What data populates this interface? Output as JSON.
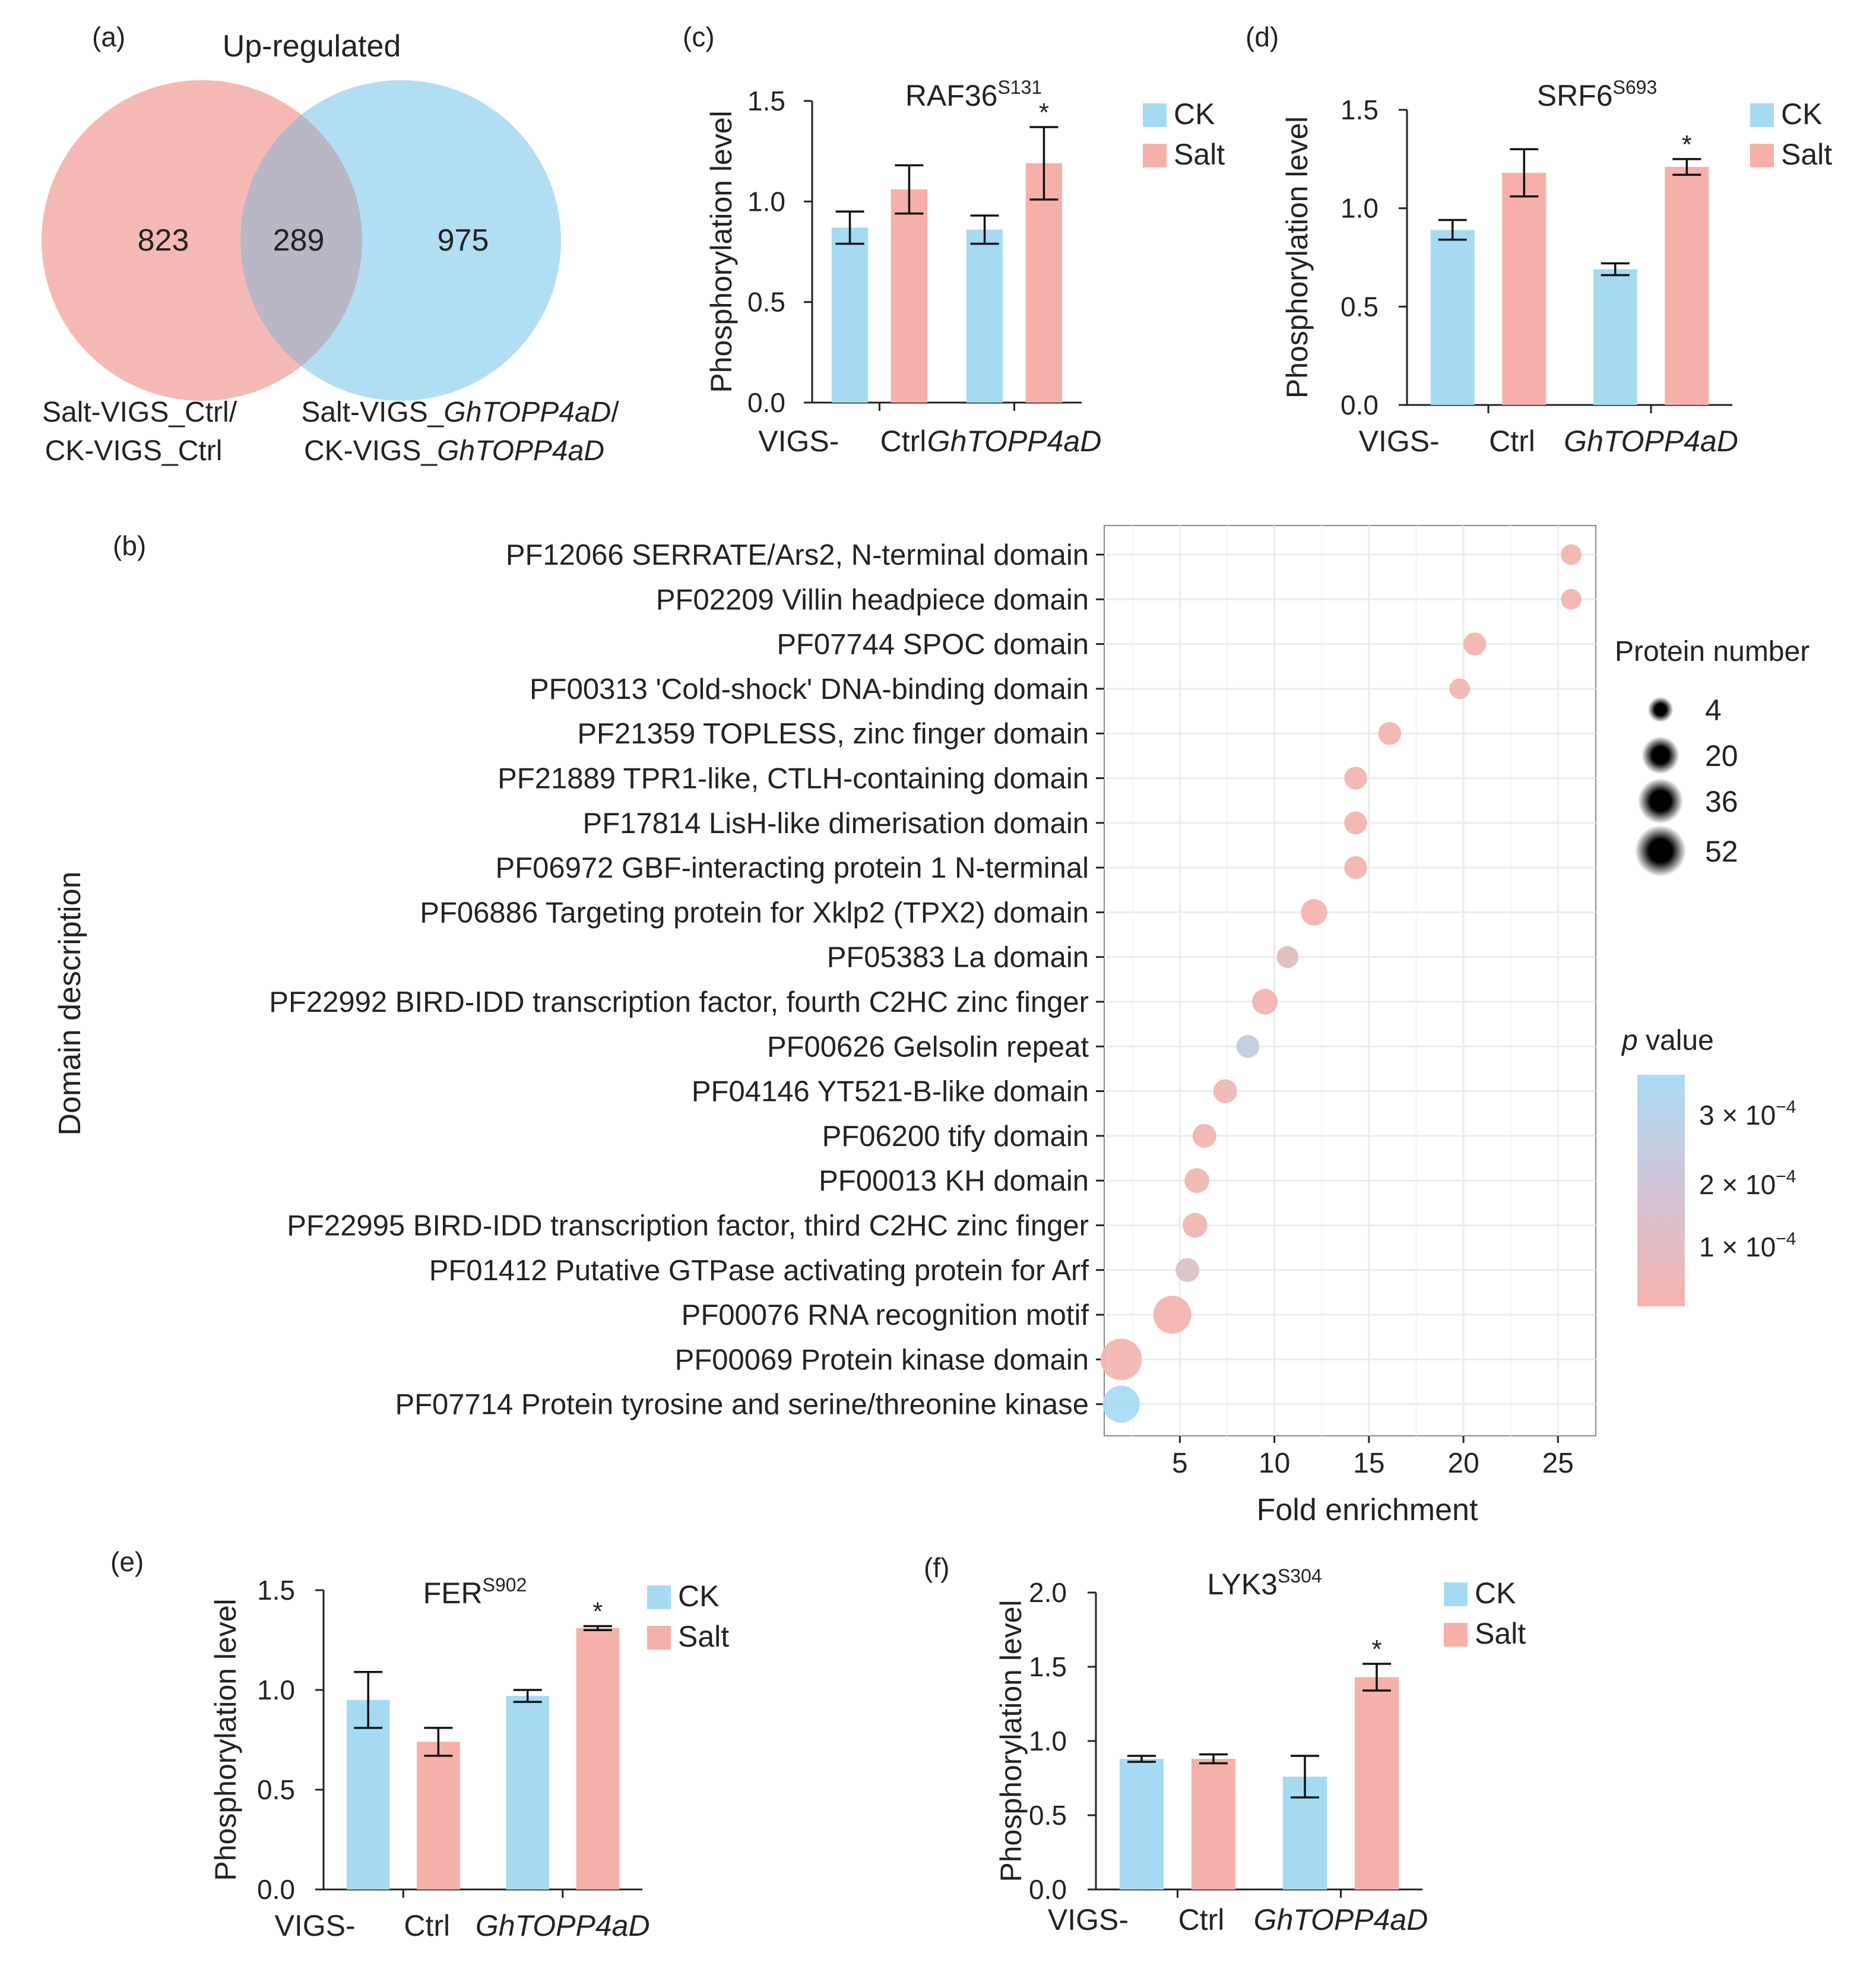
{
  "colors": {
    "ck": "#a6daf3",
    "salt": "#f5b0aa",
    "pink_circle": "#f4b9b4",
    "blue_circle": "#b2def4",
    "overlap": "#b9b6c5",
    "axis": "#222222"
  },
  "panel_labels": {
    "a": "(a)",
    "b": "(b)",
    "c": "(c)",
    "d": "(d)",
    "e": "(e)",
    "f": "(f)"
  },
  "venn": {
    "title": "Up-regulated",
    "left_only": "823",
    "overlap": "289",
    "right_only": "975",
    "left_label_1": "Salt-VIGS_Ctrl/",
    "left_label_2": "CK-VIGS_Ctrl",
    "right_label_1a": "Salt-VIGS_",
    "right_label_1b": "GhTOPP4aD",
    "right_label_1c": "/",
    "right_label_2a": "CK-VIGS_",
    "right_label_2b": "GhTOPP4aD"
  },
  "common": {
    "ylabel": "Phosphorylation level",
    "xprefix": "VIGS-",
    "group_ctrl": "Ctrl",
    "group_gene": "GhTOPP4aD",
    "legend_ck": "CK",
    "legend_salt": "Salt",
    "sig": "*"
  },
  "chart_data": [
    {
      "id": "c",
      "type": "bar",
      "title": "RAF36",
      "sup": "S131",
      "ylim": [
        0,
        1.5
      ],
      "ticks": [
        "0.0",
        "0.5",
        "1.0",
        "1.5"
      ],
      "categories": [
        "Ctrl",
        "GhTOPP4aD"
      ],
      "series": [
        {
          "name": "CK",
          "values": [
            0.87,
            0.86
          ],
          "err": [
            0.08,
            0.07
          ]
        },
        {
          "name": "Salt",
          "values": [
            1.06,
            1.19
          ],
          "err": [
            0.12,
            0.18
          ]
        }
      ],
      "significant": [
        false,
        true
      ]
    },
    {
      "id": "d",
      "type": "bar",
      "title": "SRF6",
      "sup": "S693",
      "ylim": [
        0,
        1.5
      ],
      "ticks": [
        "0.0",
        "0.5",
        "1.0",
        "1.5"
      ],
      "categories": [
        "Ctrl",
        "GhTOPP4aD"
      ],
      "series": [
        {
          "name": "CK",
          "values": [
            0.89,
            0.69
          ],
          "err": [
            0.05,
            0.03
          ]
        },
        {
          "name": "Salt",
          "values": [
            1.18,
            1.21
          ],
          "err": [
            0.12,
            0.04
          ]
        }
      ],
      "significant": [
        false,
        true
      ]
    },
    {
      "id": "e",
      "type": "bar",
      "title": "FER",
      "sup": "S902",
      "ylim": [
        0,
        1.5
      ],
      "ticks": [
        "0.0",
        "0.5",
        "1.0",
        "1.5"
      ],
      "categories": [
        "Ctrl",
        "GhTOPP4aD"
      ],
      "series": [
        {
          "name": "CK",
          "values": [
            0.95,
            0.97
          ],
          "err": [
            0.14,
            0.03
          ]
        },
        {
          "name": "Salt",
          "values": [
            0.74,
            1.31
          ],
          "err": [
            0.07,
            0.01
          ]
        }
      ],
      "significant": [
        false,
        true
      ]
    },
    {
      "id": "f",
      "type": "bar",
      "title": "LYK3",
      "sup": "S304",
      "ylim": [
        0,
        2.0
      ],
      "ticks": [
        "0.0",
        "0.5",
        "1.0",
        "1.5",
        "2.0"
      ],
      "categories": [
        "Ctrl",
        "GhTOPP4aD"
      ],
      "series": [
        {
          "name": "CK",
          "values": [
            0.88,
            0.76
          ],
          "err": [
            0.02,
            0.14
          ]
        },
        {
          "name": "Salt",
          "values": [
            0.88,
            1.43
          ],
          "err": [
            0.03,
            0.09
          ]
        }
      ],
      "significant": [
        false,
        true
      ]
    },
    {
      "id": "b",
      "type": "scatter",
      "xlabel": "Fold enrichment",
      "ylabel": "Domain description",
      "xlim": [
        1,
        27
      ],
      "xticks": [
        5,
        10,
        15,
        20,
        25
      ],
      "size_legend_title": "Protein number",
      "size_legend": [
        4,
        20,
        36,
        52
      ],
      "color_legend_title_italic": "p",
      "color_legend_title_rest": " value",
      "color_legend": [
        {
          "label": "3 × 10",
          "exp": "−4"
        },
        {
          "label": "2 × 10",
          "exp": "−4"
        },
        {
          "label": "1 × 10",
          "exp": "−4"
        }
      ],
      "p_max": 0.00035,
      "domains": [
        {
          "label": "PF12066 SERRATE/Ars2, N-terminal domain",
          "fold": 25.7,
          "count": 4,
          "p": 2e-05
        },
        {
          "label": "PF02209 Villin headpiece domain",
          "fold": 25.7,
          "count": 4,
          "p": 2e-05
        },
        {
          "label": "PF07744 SPOC domain",
          "fold": 20.6,
          "count": 6,
          "p": 1e-05
        },
        {
          "label": "PF00313 'Cold-shock' DNA-binding domain",
          "fold": 19.8,
          "count": 4,
          "p": 3e-05
        },
        {
          "label": "PF21359 TOPLESS, zinc finger domain",
          "fold": 16.1,
          "count": 6,
          "p": 2e-05
        },
        {
          "label": "PF21889 TPR1-like, CTLH-containing domain",
          "fold": 14.3,
          "count": 6,
          "p": 2e-05
        },
        {
          "label": "PF17814 LisH-like dimerisation domain",
          "fold": 14.3,
          "count": 6,
          "p": 2e-05
        },
        {
          "label": "PF06972 GBF-interacting protein 1 N-terminal",
          "fold": 14.3,
          "count": 6,
          "p": 2e-05
        },
        {
          "label": "PF06886 Targeting protein for Xklp2 (TPX2) domain",
          "fold": 12.1,
          "count": 10,
          "p": 1e-05
        },
        {
          "label": "PF05383 La domain",
          "fold": 10.7,
          "count": 5,
          "p": 9e-05
        },
        {
          "label": "PF22992 BIRD-IDD transcription factor, fourth C2HC zinc finger",
          "fold": 9.5,
          "count": 9,
          "p": 2e-05
        },
        {
          "label": "PF00626 Gelsolin repeat",
          "fold": 8.6,
          "count": 6,
          "p": 0.00024
        },
        {
          "label": "PF04146 YT521-B-like domain",
          "fold": 7.4,
          "count": 7,
          "p": 4e-05
        },
        {
          "label": "PF06200 tify domain",
          "fold": 6.3,
          "count": 7,
          "p": 3e-05
        },
        {
          "label": "PF00013 KH domain",
          "fold": 5.9,
          "count": 8,
          "p": 3e-05
        },
        {
          "label": "PF22995 BIRD-IDD transcription factor, third C2HC zinc finger",
          "fold": 5.8,
          "count": 8,
          "p": 3e-05
        },
        {
          "label": "PF01412 Putative GTPase activating protein for Arf",
          "fold": 5.4,
          "count": 7,
          "p": 0.00012
        },
        {
          "label": "PF00076 RNA recognition motif",
          "fold": 4.6,
          "count": 30,
          "p": 1e-05
        },
        {
          "label": "PF00069 Protein kinase domain",
          "fold": 1.9,
          "count": 38,
          "p": 2e-05
        },
        {
          "label": "PF07714 Protein tyrosine and serine/threonine kinase",
          "fold": 1.9,
          "count": 28,
          "p": 0.00035
        }
      ]
    }
  ]
}
